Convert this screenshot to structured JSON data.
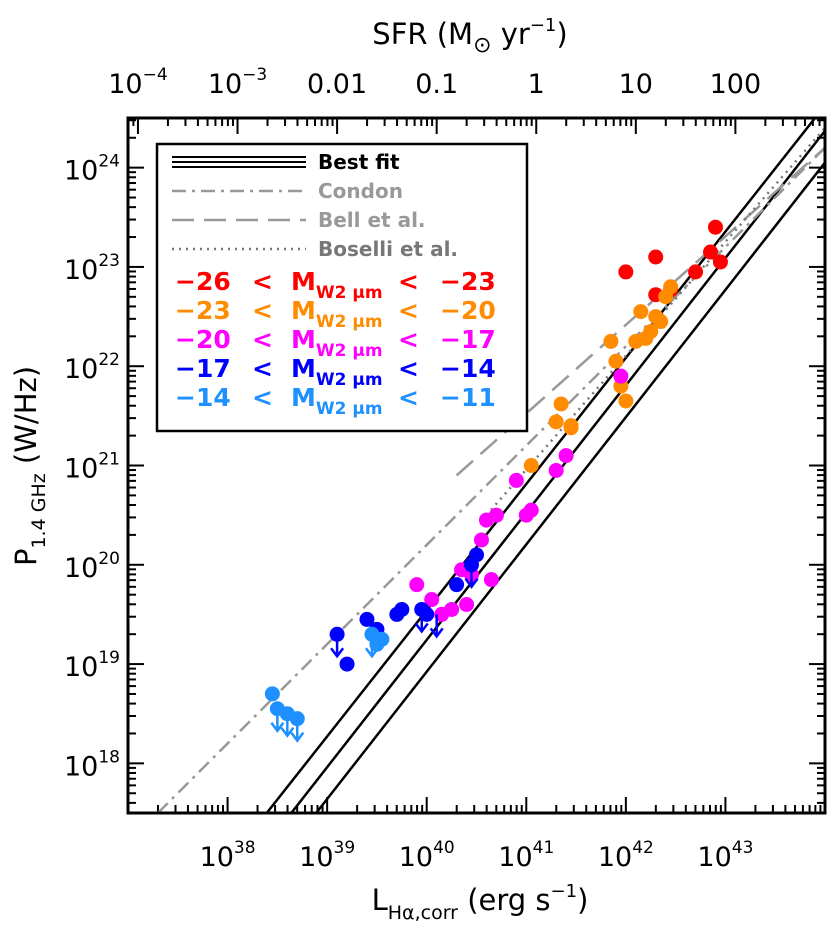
{
  "chart_data": {
    "type": "scatter",
    "title": "",
    "top_axis": {
      "label_text": "SFR (M",
      "label_unit": "yr",
      "label_exp": "−1",
      "ticks": [
        {
          "label": "10",
          "exp": "−4",
          "value": 0.0001
        },
        {
          "label": "10",
          "exp": "−3",
          "value": 0.001
        },
        {
          "label": "0.01",
          "exp": "",
          "value": 0.01
        },
        {
          "label": "0.1",
          "exp": "",
          "value": 0.1
        },
        {
          "label": "1",
          "exp": "",
          "value": 1
        },
        {
          "label": "10",
          "exp": "",
          "value": 10
        },
        {
          "label": "100",
          "exp": "",
          "value": 100
        }
      ]
    },
    "x_axis": {
      "label_main": "L",
      "label_sub": "Hα,corr",
      "label_unit": " (erg s",
      "label_exp": "−1",
      "label_close": ")",
      "scale": "log",
      "log_range": [
        37.0,
        44.0
      ],
      "ticks": [
        {
          "base": "10",
          "exp": "38",
          "log": 38
        },
        {
          "base": "10",
          "exp": "39",
          "log": 39
        },
        {
          "base": "10",
          "exp": "40",
          "log": 40
        },
        {
          "base": "10",
          "exp": "41",
          "log": 41
        },
        {
          "base": "10",
          "exp": "42",
          "log": 42
        },
        {
          "base": "10",
          "exp": "43",
          "log": 43
        }
      ]
    },
    "y_axis": {
      "label_main": "P",
      "label_sub": "1.4 GHz",
      "label_unit": " (W/Hz)",
      "scale": "log",
      "log_range": [
        17.5,
        24.5
      ],
      "ticks": [
        {
          "base": "10",
          "exp": "18",
          "log": 18
        },
        {
          "base": "10",
          "exp": "19",
          "log": 19
        },
        {
          "base": "10",
          "exp": "20",
          "log": 20
        },
        {
          "base": "10",
          "exp": "21",
          "log": 21
        },
        {
          "base": "10",
          "exp": "22",
          "log": 22
        },
        {
          "base": "10",
          "exp": "23",
          "log": 23
        },
        {
          "base": "10",
          "exp": "24",
          "log": 24
        }
      ]
    },
    "legend": {
      "placement": "top-left",
      "lines": [
        {
          "label": "Best fit",
          "style": "triple-solid",
          "color": "#000000"
        },
        {
          "label": "Condon",
          "style": "dash-dot",
          "color": "#999999"
        },
        {
          "label": "Bell et al.",
          "style": "long-dash",
          "color": "#999999"
        },
        {
          "label": "Boselli et al.",
          "style": "dotted",
          "color": "#777777"
        }
      ],
      "bins": [
        {
          "low": "−26",
          "lt": "<",
          "M": "M",
          "sub": "W2 μm",
          "high": "−23",
          "color": "#ff0000"
        },
        {
          "low": "−23",
          "lt": "<",
          "M": "M",
          "sub": "W2 μm",
          "high": "−20",
          "color": "#ff8c00"
        },
        {
          "low": "−20",
          "lt": "<",
          "M": "M",
          "sub": "W2 μm",
          "high": "−17",
          "color": "#ff00ff"
        },
        {
          "low": "−17",
          "lt": "<",
          "M": "M",
          "sub": "W2 μm",
          "high": "−14",
          "color": "#0000ff"
        },
        {
          "low": "−14",
          "lt": "<",
          "M": "M",
          "sub": "W2 μm",
          "high": "−11",
          "color": "#1e90ff"
        }
      ]
    },
    "lines": [
      {
        "name": "Best fit",
        "points": [
          [
            38.0,
            17.0
          ],
          [
            43.9,
            24.5
          ]
        ],
        "color": "#000000",
        "width": 2.5
      },
      {
        "name": "Best fit",
        "points": [
          [
            38.25,
            17.0
          ],
          [
            44.1,
            24.5
          ]
        ],
        "color": "#000000",
        "width": 2.5
      },
      {
        "name": "Best fit",
        "points": [
          [
            38.5,
            17.0
          ],
          [
            44.35,
            24.5
          ]
        ],
        "color": "#000000",
        "width": 2.5
      },
      {
        "name": "Condon",
        "points": [
          [
            37.3,
            17.5
          ],
          [
            44.0,
            24.2
          ]
        ],
        "color": "#999999",
        "width": 2.5,
        "dash": "14,6,3,6"
      },
      {
        "name": "Bell et al.",
        "points": [
          [
            40.3,
            20.9
          ],
          [
            44.0,
            24.2
          ]
        ],
        "color": "#999999",
        "width": 2.5,
        "dash": "22,10"
      },
      {
        "name": "Boselli et al.",
        "points": [
          [
            40.6,
            20.5
          ],
          [
            44.0,
            24.4
          ]
        ],
        "color": "#777777",
        "width": 2.5,
        "dash": "2,5"
      }
    ],
    "series": [
      {
        "name": "−26 < M W2 μm < −23",
        "color": "#ff0000",
        "points": [
          [
            42.0,
            22.95
          ],
          [
            42.3,
            23.1
          ],
          [
            42.3,
            22.72
          ],
          [
            42.45,
            22.77
          ],
          [
            42.7,
            22.95
          ],
          [
            42.85,
            23.15
          ],
          [
            42.9,
            23.4
          ],
          [
            42.95,
            23.05
          ]
        ]
      },
      {
        "name": "−23 < M W2 μm < −20",
        "color": "#ff8c00",
        "points": [
          [
            41.05,
            21.0
          ],
          [
            41.35,
            21.62
          ],
          [
            41.3,
            21.44
          ],
          [
            41.45,
            21.38
          ],
          [
            41.45,
            21.4
          ],
          [
            41.85,
            22.25
          ],
          [
            41.9,
            22.05
          ],
          [
            41.95,
            21.8
          ],
          [
            42.0,
            21.65
          ],
          [
            42.1,
            22.25
          ],
          [
            42.15,
            22.55
          ],
          [
            42.25,
            22.35
          ],
          [
            42.3,
            22.5
          ],
          [
            42.35,
            22.45
          ],
          [
            42.4,
            22.7
          ],
          [
            42.45,
            22.8
          ],
          [
            42.2,
            22.28
          ]
        ]
      },
      {
        "name": "−20 < M W2 μm < −17",
        "color": "#ff00ff",
        "points": [
          [
            39.9,
            19.8
          ],
          [
            40.05,
            19.65
          ],
          [
            40.15,
            19.5
          ],
          [
            40.25,
            19.55
          ],
          [
            40.35,
            19.95
          ],
          [
            40.4,
            19.6
          ],
          [
            40.45,
            19.9
          ],
          [
            40.55,
            20.25
          ],
          [
            40.6,
            20.45
          ],
          [
            40.65,
            19.85
          ],
          [
            40.7,
            20.5
          ],
          [
            40.9,
            20.85
          ],
          [
            41.0,
            20.5
          ],
          [
            41.05,
            20.55
          ],
          [
            41.3,
            20.95
          ],
          [
            41.4,
            21.1
          ],
          [
            41.95,
            21.9
          ]
        ]
      },
      {
        "name": "−17 < M W2 μm < −14",
        "color": "#0000ff",
        "points": [
          [
            39.1,
            19.3
          ],
          [
            39.2,
            19.0
          ],
          [
            39.4,
            19.45
          ],
          [
            39.5,
            19.35
          ],
          [
            39.7,
            19.5
          ],
          [
            39.75,
            19.55
          ],
          [
            39.95,
            19.55
          ],
          [
            40.0,
            19.5
          ],
          [
            40.3,
            19.8
          ],
          [
            40.45,
            20.0
          ],
          [
            40.5,
            20.1
          ]
        ]
      },
      {
        "name": "−14 < M W2 μm < −11",
        "color": "#1e90ff",
        "points": [
          [
            38.45,
            18.7
          ],
          [
            38.5,
            18.55
          ],
          [
            38.6,
            18.5
          ],
          [
            38.7,
            18.45
          ],
          [
            39.45,
            19.3
          ],
          [
            39.5,
            19.2
          ],
          [
            39.55,
            19.25
          ]
        ]
      }
    ],
    "upper_limits": [
      {
        "x": 38.5,
        "y": 18.55,
        "color": "#1e90ff"
      },
      {
        "x": 38.6,
        "y": 18.5,
        "color": "#1e90ff"
      },
      {
        "x": 38.7,
        "y": 18.45,
        "color": "#1e90ff"
      },
      {
        "x": 39.1,
        "y": 19.3,
        "color": "#0000ff"
      },
      {
        "x": 39.45,
        "y": 19.3,
        "color": "#1e90ff"
      },
      {
        "x": 39.95,
        "y": 19.55,
        "color": "#0000ff"
      },
      {
        "x": 40.1,
        "y": 19.5,
        "color": "#0000ff"
      },
      {
        "x": 40.45,
        "y": 20.0,
        "color": "#0000ff"
      }
    ]
  }
}
